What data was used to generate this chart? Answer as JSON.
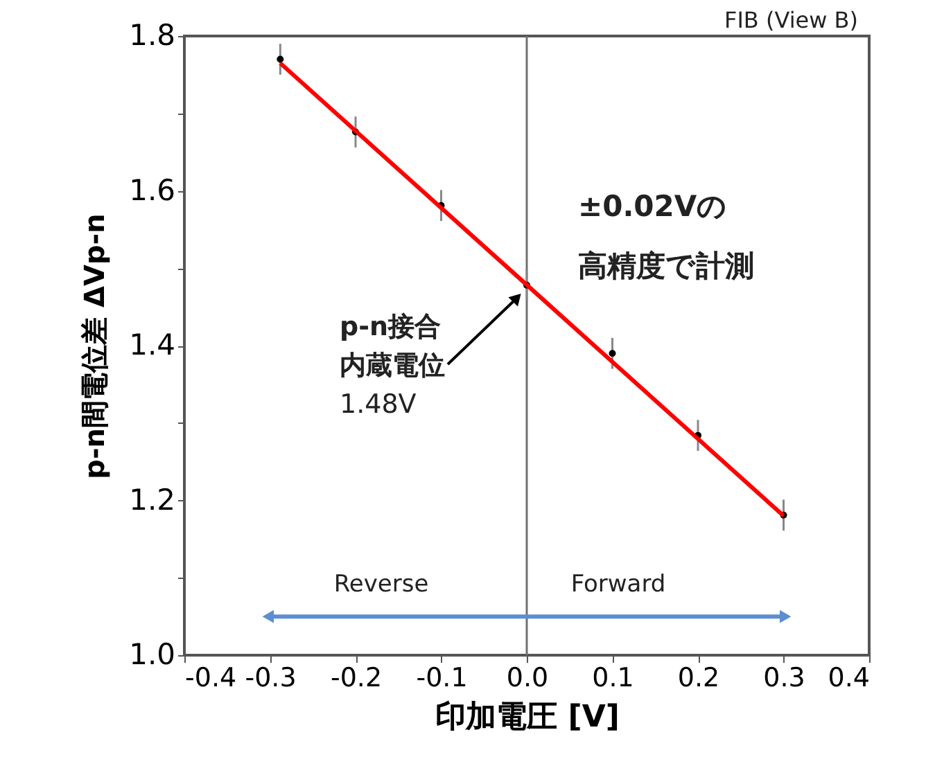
{
  "chart_data": {
    "type": "scatter",
    "xlabel": "印加電圧 [V]",
    "ylabel": "p-n間電位差 ΔVp-n",
    "xlim": [
      -0.4,
      0.4
    ],
    "ylim": [
      1.0,
      1.8
    ],
    "xticks": [
      -0.4,
      -0.3,
      -0.2,
      -0.1,
      {
        "value": 0.0,
        "label": "0.0"
      },
      0.1,
      0.2,
      0.3,
      0.4
    ],
    "yticks": [
      {
        "value": 1.0,
        "label": "1.0"
      },
      {
        "value": 1.1,
        "label": null
      },
      1.2,
      {
        "value": 1.3,
        "label": null
      },
      1.4,
      {
        "value": 1.5,
        "label": null
      },
      1.6,
      {
        "value": 1.7,
        "label": null
      },
      1.8
    ],
    "grid": false,
    "series": [
      {
        "color": "#000000",
        "marker": "circle",
        "x": [
          -0.288,
          -0.2,
          -0.1,
          0.0,
          0.1,
          0.2,
          0.3
        ],
        "values": [
          1.77,
          1.676,
          1.581,
          1.478,
          1.39,
          1.284,
          1.181
        ],
        "errors": [
          0.02,
          0.02,
          0.02,
          0.02,
          0.02,
          0.02,
          0.02
        ]
      },
      {
        "type": "line",
        "color": "#ff0000",
        "x": [
          -0.288,
          0.3
        ],
        "values": [
          1.765,
          1.18
        ]
      },
      {
        "type": "line",
        "color": "#5b8fd0",
        "marker": "triangle",
        "x": [
          -0.3,
          0.3
        ],
        "values": [
          1.05,
          1.05
        ]
      }
    ],
    "ref_lines": [
      {
        "axis": "x",
        "value": 0.0,
        "color": "#707070"
      }
    ],
    "annotations": [
      "FIB (View B)",
      "±0.02Vの",
      "高精度で計測",
      "p-n接合",
      "内蔵電位",
      "1.48V",
      "Reverse",
      "Forward"
    ]
  }
}
